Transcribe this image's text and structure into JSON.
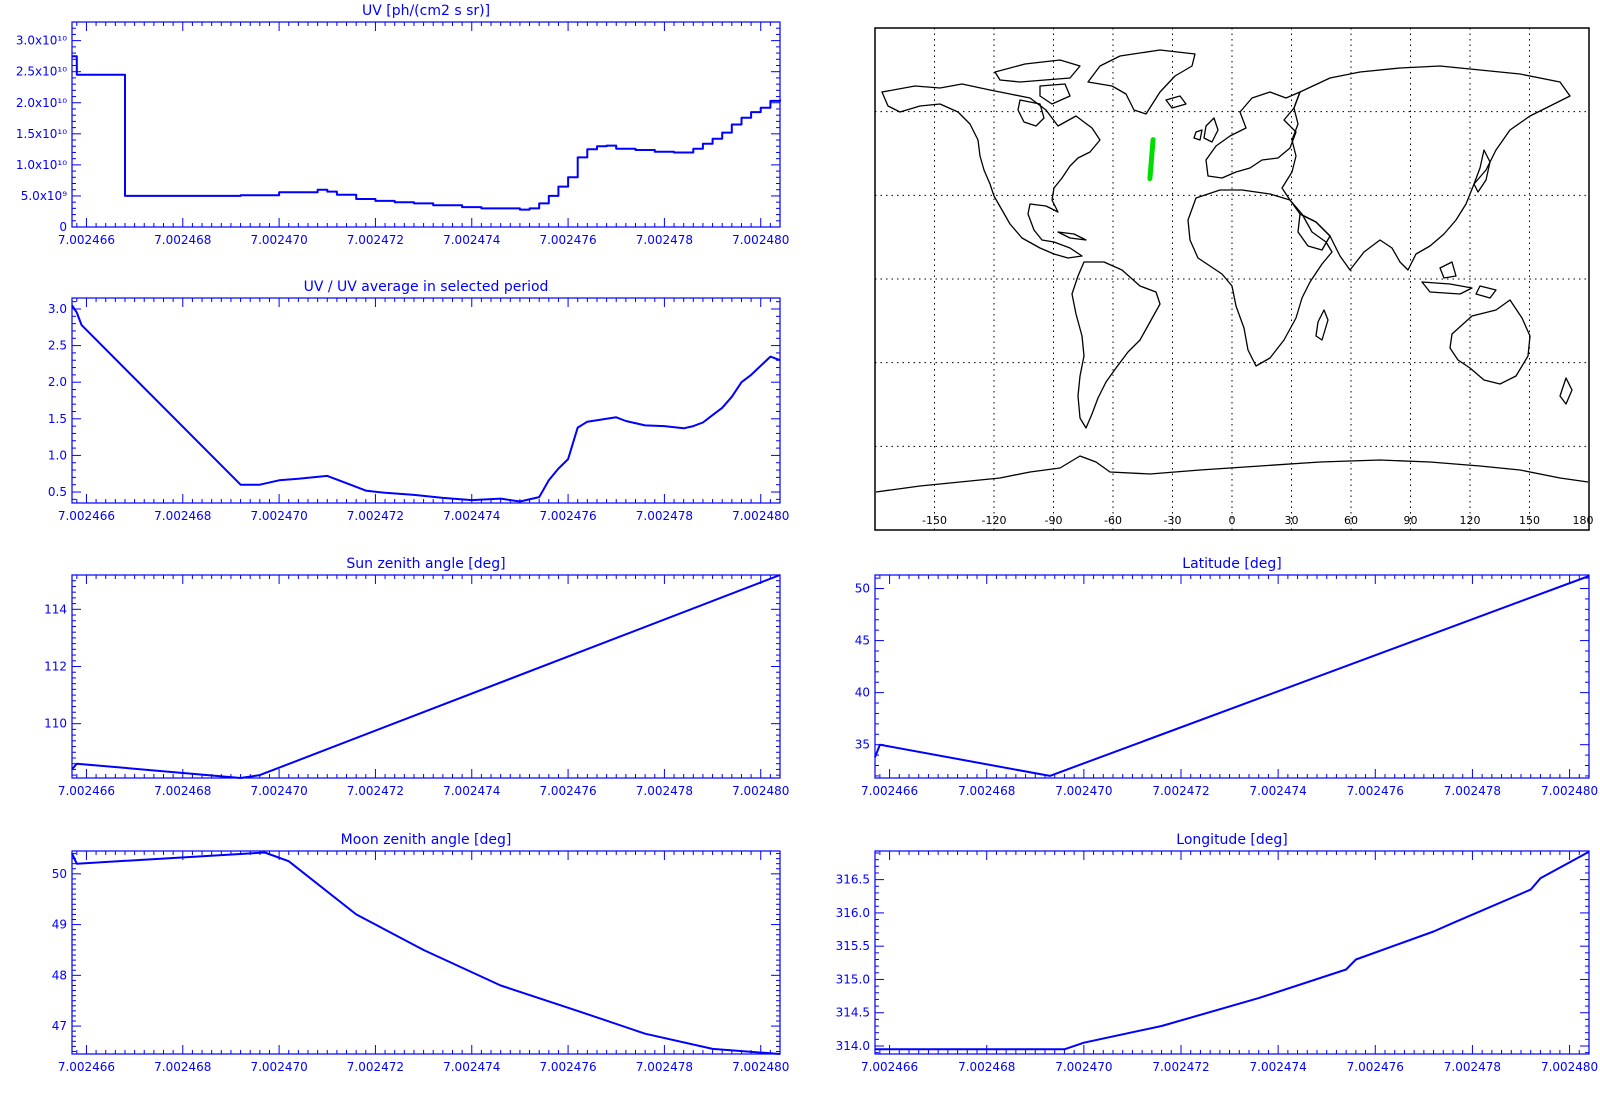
{
  "colors": {
    "axis": "#0000ff",
    "line": "#0000ff",
    "track": "#00dd00",
    "map": "#000000"
  },
  "charts": [
    {
      "title": "UV [ph/(cm2 s sr)]",
      "x_ticks": [
        "7.002466",
        "7.002468",
        "7.002470",
        "7.002472",
        "7.002474",
        "7.002476",
        "7.002478",
        "7.002480"
      ],
      "y_ticks": [
        "0",
        "5.0x10⁹",
        "1.0x10¹⁰",
        "1.5x10¹⁰",
        "2.0x10¹⁰",
        "2.5x10¹⁰",
        "3.0x10¹⁰"
      ]
    },
    {
      "title": "UV / UV average in selected period",
      "x_ticks": [
        "7.002466",
        "7.002468",
        "7.002470",
        "7.002472",
        "7.002474",
        "7.002476",
        "7.002478",
        "7.002480"
      ],
      "y_ticks": [
        "0.5",
        "1.0",
        "1.5",
        "2.0",
        "2.5",
        "3.0"
      ]
    },
    {
      "title": "Sun zenith angle [deg]",
      "x_ticks": [
        "7.002466",
        "7.002468",
        "7.002470",
        "7.002472",
        "7.002474",
        "7.002476",
        "7.002478",
        "7.002480"
      ],
      "y_ticks": [
        "110",
        "112",
        "114"
      ]
    },
    {
      "title": "Moon zenith angle [deg]",
      "x_ticks": [
        "7.002466",
        "7.002468",
        "7.002470",
        "7.002472",
        "7.002474",
        "7.002476",
        "7.002478",
        "7.002480"
      ],
      "y_ticks": [
        "47",
        "48",
        "49",
        "50"
      ]
    },
    {
      "title": "Latitude [deg]",
      "x_ticks": [
        "7.002466",
        "7.002468",
        "7.002470",
        "7.002472",
        "7.002474",
        "7.002476",
        "7.002478",
        "7.002480"
      ],
      "y_ticks": [
        "35",
        "40",
        "45",
        "50"
      ]
    },
    {
      "title": "Longitude [deg]",
      "x_ticks": [
        "7.002466",
        "7.002468",
        "7.002470",
        "7.002472",
        "7.002474",
        "7.002476",
        "7.002478",
        "7.002480"
      ],
      "y_ticks": [
        "314.0",
        "314.5",
        "315.0",
        "315.5",
        "316.0",
        "316.5"
      ]
    }
  ],
  "map": {
    "lon_ticks": [
      "-150",
      "-120",
      "-90",
      "-60",
      "-30",
      "0",
      "30",
      "60",
      "90",
      "120",
      "150",
      "180"
    ],
    "track": [
      [
        -41.4,
        36
      ],
      [
        -39.8,
        50
      ]
    ]
  },
  "chart_data": [
    {
      "type": "line",
      "title": "UV [ph/(cm2 s sr)]",
      "xlabel": "",
      "ylabel": "",
      "xlim": [
        7.0024657,
        7.0024804
      ],
      "ylim": [
        0,
        33000000000.0
      ],
      "series": [
        {
          "x": [
            7.0024657,
            7.0024658,
            7.0024668,
            7.0024668,
            7.0024692,
            7.00247,
            7.0024708,
            7.002471,
            7.0024712,
            7.0024716,
            7.002472,
            7.0024724,
            7.0024728,
            7.0024732,
            7.0024738,
            7.0024742,
            7.0024746,
            7.002475,
            7.0024752,
            7.0024754,
            7.0024756,
            7.0024758,
            7.002476,
            7.0024762,
            7.0024764,
            7.0024766,
            7.0024768,
            7.002477,
            7.0024774,
            7.0024778,
            7.0024782,
            7.0024786,
            7.0024788,
            7.002479,
            7.0024792,
            7.0024794,
            7.0024796,
            7.0024798,
            7.00248,
            7.0024802,
            7.0024804
          ],
          "y": [
            27500000000.0,
            24500000000.0,
            24500000000.0,
            5000000000.0,
            5100000000.0,
            5600000000.0,
            6000000000.0,
            5700000000.0,
            5200000000.0,
            4500000000.0,
            4200000000.0,
            4000000000.0,
            3800000000.0,
            3500000000.0,
            3200000000.0,
            3000000000.0,
            3000000000.0,
            2800000000.0,
            3000000000.0,
            3800000000.0,
            5000000000.0,
            6500000000.0,
            8000000000.0,
            11200000000.0,
            12500000000.0,
            13000000000.0,
            13100000000.0,
            12600000000.0,
            12400000000.0,
            12100000000.0,
            12000000000.0,
            12600000000.0,
            13400000000.0,
            14200000000.0,
            15200000000.0,
            16500000000.0,
            17600000000.0,
            18500000000.0,
            19200000000.0,
            20300000000.0,
            20500000000.0
          ],
          "step": true
        }
      ]
    },
    {
      "type": "line",
      "title": "UV / UV average in selected period",
      "xlabel": "",
      "ylabel": "",
      "xlim": [
        7.0024657,
        7.0024804
      ],
      "ylim": [
        0.35,
        3.15
      ],
      "series": [
        {
          "x": [
            7.0024657,
            7.0024658,
            7.0024659,
            7.0024692,
            7.0024696,
            7.00247,
            7.0024704,
            7.002471,
            7.0024714,
            7.0024718,
            7.0024722,
            7.0024728,
            7.0024734,
            7.002474,
            7.0024746,
            7.002475,
            7.0024754,
            7.0024756,
            7.0024758,
            7.002476,
            7.0024762,
            7.0024764,
            7.0024766,
            7.0024768,
            7.002477,
            7.0024772,
            7.0024776,
            7.002478,
            7.0024784,
            7.0024786,
            7.0024788,
            7.002479,
            7.0024792,
            7.0024794,
            7.0024796,
            7.0024798,
            7.0024802,
            7.0024804
          ],
          "y": [
            3.05,
            2.95,
            2.78,
            0.6,
            0.6,
            0.66,
            0.68,
            0.72,
            0.62,
            0.52,
            0.49,
            0.46,
            0.42,
            0.39,
            0.41,
            0.37,
            0.43,
            0.66,
            0.82,
            0.95,
            1.38,
            1.46,
            1.48,
            1.5,
            1.52,
            1.47,
            1.41,
            1.4,
            1.37,
            1.4,
            1.45,
            1.55,
            1.65,
            1.8,
            2.0,
            2.1,
            2.35,
            2.3
          ]
        }
      ]
    },
    {
      "type": "line",
      "title": "Sun zenith angle [deg]",
      "xlabel": "",
      "ylabel": "",
      "xlim": [
        7.0024657,
        7.0024804
      ],
      "ylim": [
        108.1,
        115.2
      ],
      "series": [
        {
          "x": [
            7.0024657,
            7.0024658,
            7.0024692,
            7.0024696,
            7.0024804
          ],
          "y": [
            108.4,
            108.6,
            108.1,
            108.2,
            115.2
          ]
        }
      ]
    },
    {
      "type": "line",
      "title": "Moon zenith angle [deg]",
      "xlabel": "",
      "ylabel": "",
      "xlim": [
        7.0024657,
        7.0024804
      ],
      "ylim": [
        46.45,
        50.45
      ],
      "series": [
        {
          "x": [
            7.0024657,
            7.0024658,
            7.0024697,
            7.0024702,
            7.0024716,
            7.002473,
            7.0024746,
            7.0024762,
            7.0024776,
            7.002479,
            7.0024804
          ],
          "y": [
            50.4,
            50.2,
            50.42,
            50.25,
            49.2,
            48.5,
            47.8,
            47.3,
            46.85,
            46.55,
            46.45
          ]
        }
      ]
    },
    {
      "type": "line",
      "title": "Latitude [deg]",
      "xlabel": "",
      "ylabel": "",
      "xlim": [
        7.0024657,
        7.0024804
      ],
      "ylim": [
        31.8,
        51.3
      ],
      "series": [
        {
          "x": [
            7.0024657,
            7.0024658,
            7.0024693,
            7.0024804
          ],
          "y": [
            33.8,
            35.0,
            32.0,
            51.2
          ]
        }
      ]
    },
    {
      "type": "line",
      "title": "Longitude [deg]",
      "xlabel": "",
      "ylabel": "",
      "xlim": [
        7.0024657,
        7.0024804
      ],
      "ylim": [
        313.88,
        316.93
      ],
      "series": [
        {
          "x": [
            7.0024657,
            7.0024696,
            7.00247,
            7.0024716,
            7.0024736,
            7.0024754,
            7.0024756,
            7.0024772,
            7.0024776,
            7.0024792,
            7.0024794,
            7.0024804
          ],
          "y": [
            313.95,
            313.95,
            314.05,
            314.3,
            314.72,
            315.15,
            315.3,
            315.72,
            315.85,
            316.35,
            316.52,
            316.92
          ]
        }
      ]
    }
  ]
}
